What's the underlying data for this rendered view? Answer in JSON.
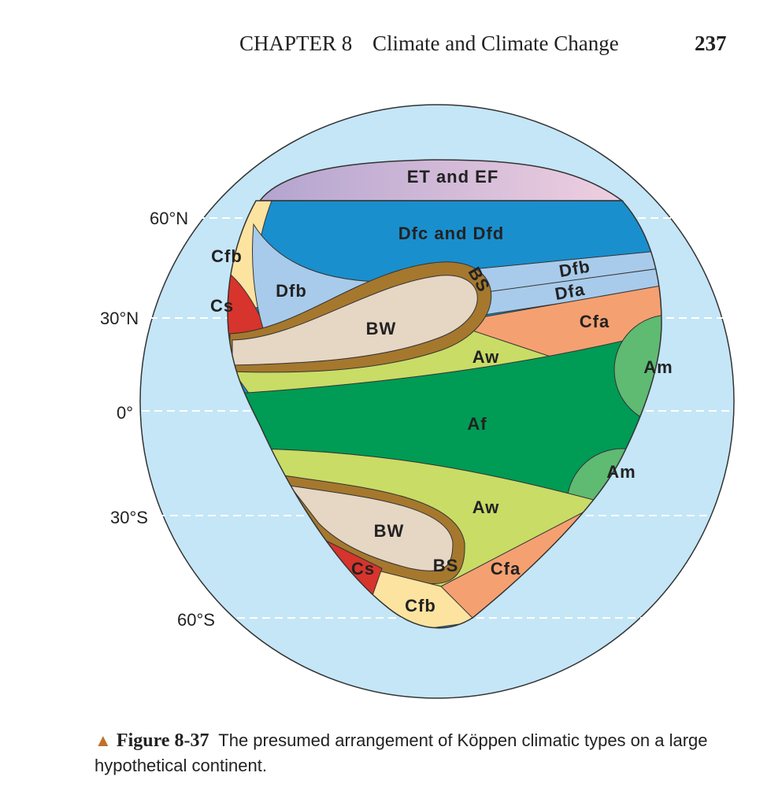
{
  "header": {
    "chapter": "CHAPTER 8",
    "title": "Climate and Climate Change",
    "page": "237"
  },
  "latitudes": [
    "60°N",
    "30°N",
    "0°",
    "30°S",
    "60°S"
  ],
  "regions": [
    "ET and EF",
    "Dfc and Dfd",
    "Dfb",
    "Cfb",
    "Cs",
    "BS",
    "Dfb",
    "Dfa",
    "BW",
    "Cfa",
    "Aw",
    "Am",
    "Af",
    "Am",
    "Aw",
    "BW",
    "BS",
    "Cs",
    "Cfa",
    "Cfb"
  ],
  "caption": {
    "marker": "▲",
    "label": "Figure 8-37",
    "text": "The presumed arrangement of Köppen climatic types on a large hypothetical continent."
  }
}
